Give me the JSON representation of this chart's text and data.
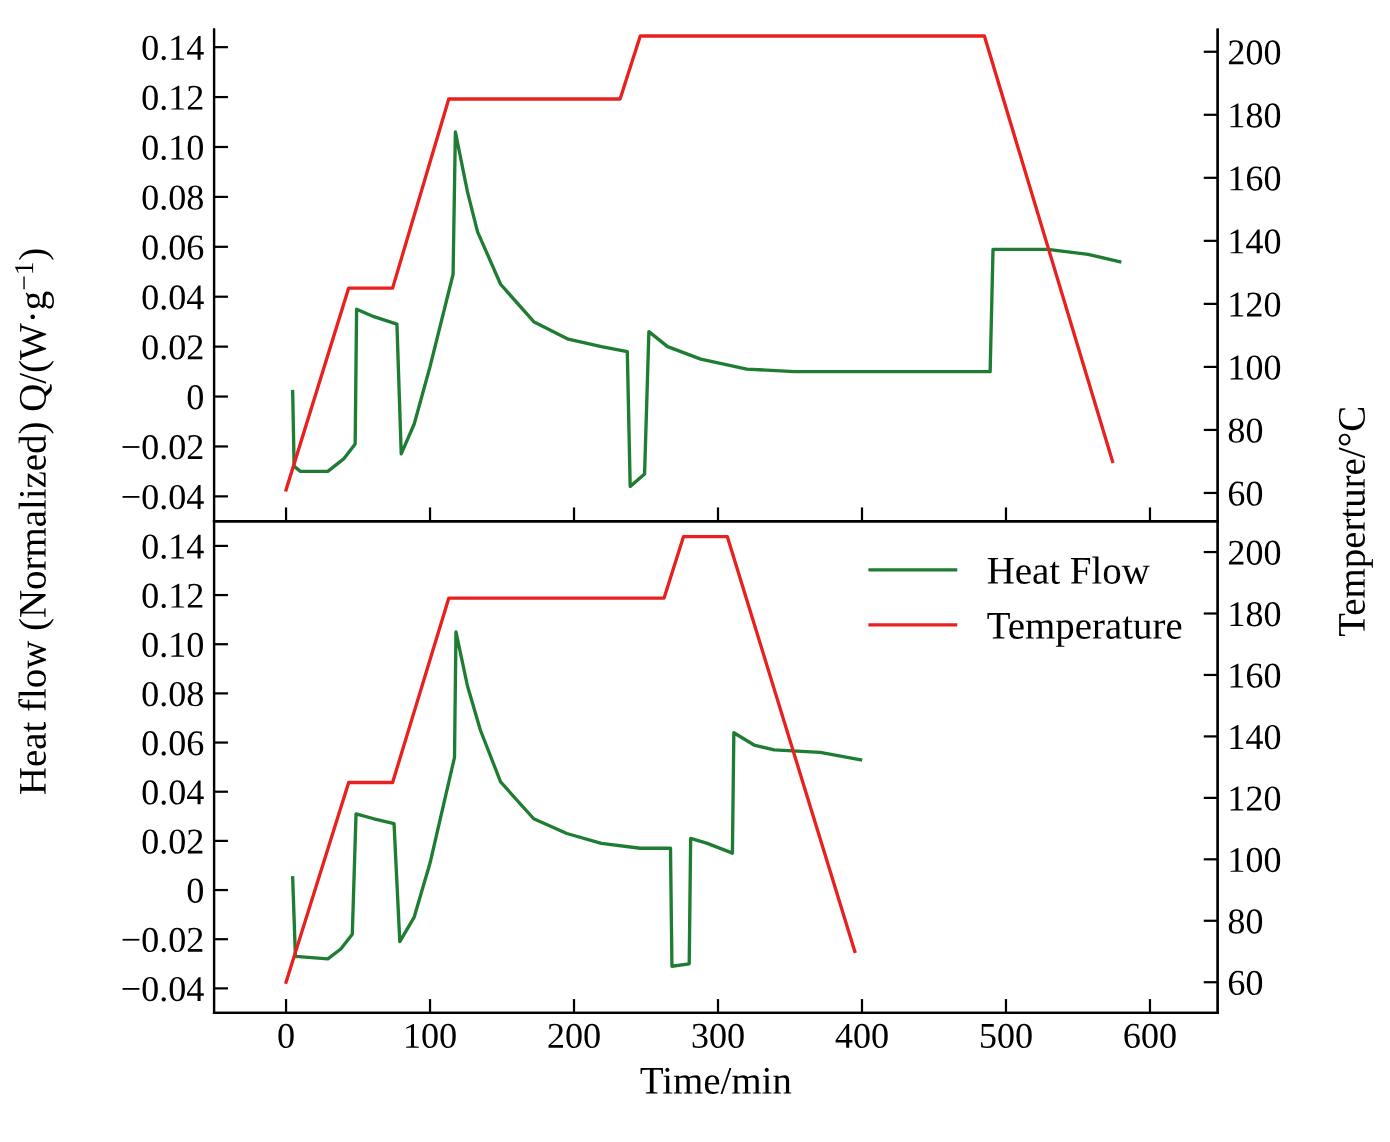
{
  "chart_data": [
    {
      "type": "line",
      "ylabel": "Heat flow (Normalized) Q/(W·g$^{−1}$)",
      "y2label": "Temperture/°C",
      "legend": false,
      "tick_labels": "y",
      "grid": false,
      "xlim": [
        -50,
        647
      ],
      "xticks": [
        0,
        100,
        200,
        300,
        400,
        500,
        600
      ],
      "ylim": [
        -0.05,
        0.147
      ],
      "yticks": [
        {
          "value": -0.04,
          "label": "−0.04"
        },
        {
          "value": -0.02,
          "label": "−0.02"
        },
        0,
        {
          "value": 0.02,
          "label": "0.02"
        },
        {
          "value": 0.04,
          "label": "0.04"
        },
        {
          "value": 0.06,
          "label": "0.06"
        },
        {
          "value": 0.08,
          "label": "0.08"
        },
        {
          "value": 0.1,
          "label": "0.10"
        },
        {
          "value": 0.12,
          "label": "0.12"
        },
        {
          "value": 0.14,
          "label": "0.14"
        }
      ],
      "y2lim": [
        51,
        207
      ],
      "y2ticks": [
        60,
        80,
        100,
        120,
        140,
        160,
        180,
        200
      ],
      "series": [
        {
          "color": "#1e7d32",
          "x": [
            4.6,
            5.6,
            10,
            29,
            40,
            48,
            49,
            61,
            77,
            80,
            89,
            100,
            116,
            117.6,
            126,
            133,
            149,
            172,
            196,
            219,
            237,
            239,
            249,
            252,
            265,
            288,
            320,
            353,
            489,
            491,
            529,
            557,
            579
          ],
          "values": [
            0.002,
            -0.028,
            -0.03,
            -0.03,
            -0.025,
            -0.019,
            0.035,
            0.032,
            0.029,
            -0.023,
            -0.011,
            0.012,
            0.049,
            0.106,
            0.082,
            0.066,
            0.045,
            0.03,
            0.023,
            0.02,
            0.018,
            -0.036,
            -0.031,
            0.026,
            0.02,
            0.015,
            0.011,
            0.01,
            0.01,
            0.059,
            0.059,
            0.057,
            0.054
          ]
        },
        {
          "color": "#e8211f",
          "axis": "y2",
          "x": [
            0,
            43.5,
            74,
            113,
            232,
            246,
            485,
            574
          ],
          "values": [
            61,
            125,
            125,
            185,
            185,
            205,
            205,
            70
          ]
        }
      ]
    },
    {
      "type": "line",
      "xlabel": "Time/min",
      "legend": "top right",
      "grid": false,
      "xlim": [
        -50,
        647
      ],
      "xticks": [
        0,
        100,
        200,
        300,
        400,
        500,
        600
      ],
      "ylim": [
        -0.05,
        0.15
      ],
      "yticks": [
        {
          "value": -0.04,
          "label": "−0.04"
        },
        {
          "value": -0.02,
          "label": "−0.02"
        },
        0,
        {
          "value": 0.02,
          "label": "0.02"
        },
        {
          "value": 0.04,
          "label": "0.04"
        },
        {
          "value": 0.06,
          "label": "0.06"
        },
        {
          "value": 0.08,
          "label": "0.08"
        },
        {
          "value": 0.1,
          "label": "0.10"
        },
        {
          "value": 0.12,
          "label": "0.12"
        },
        {
          "value": 0.14,
          "label": "0.14"
        }
      ],
      "y2lim": [
        50,
        210
      ],
      "y2ticks": [
        60,
        80,
        100,
        120,
        140,
        160,
        180,
        200
      ],
      "series": [
        {
          "name": "Heat Flow",
          "color": "#1e7d32",
          "x": [
            4.6,
            6.5,
            29,
            38,
            46,
            48.6,
            61,
            75,
            79,
            89,
            100,
            117,
            118,
            126,
            135,
            149,
            172,
            195,
            219,
            246,
            267,
            268,
            280,
            281,
            292.6,
            310,
            311,
            325,
            339,
            371,
            399
          ],
          "values": [
            0.005,
            -0.027,
            -0.028,
            -0.024,
            -0.018,
            0.031,
            0.029,
            0.027,
            -0.021,
            -0.011,
            0.011,
            0.054,
            0.105,
            0.083,
            0.065,
            0.044,
            0.029,
            0.023,
            0.019,
            0.017,
            0.017,
            -0.031,
            -0.03,
            0.021,
            0.019,
            0.015,
            0.064,
            0.059,
            0.057,
            0.056,
            0.053
          ]
        },
        {
          "name": "Temperature",
          "color": "#e8211f",
          "axis": "y2",
          "x": [
            0,
            43.5,
            74,
            113,
            262.5,
            276,
            306.5,
            395
          ],
          "values": [
            60,
            125,
            125,
            185,
            185,
            205,
            205,
            70
          ]
        }
      ]
    }
  ]
}
